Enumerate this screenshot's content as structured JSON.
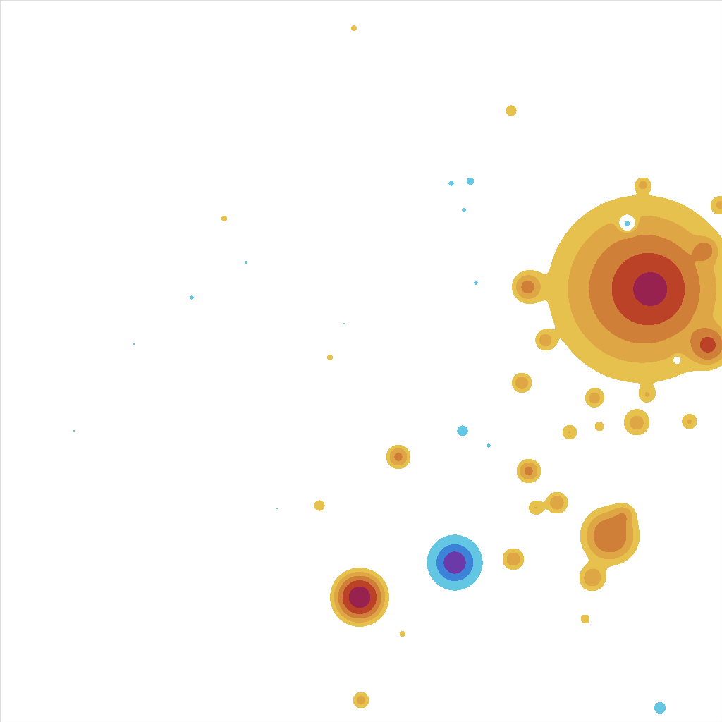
{
  "chart_data": {
    "type": "contour",
    "xlim": [
      0,
      1024
    ],
    "ylim": [
      1024,
      0
    ],
    "tick_labels": false,
    "grid": false,
    "levels": [
      -1000,
      -8,
      -4,
      -1,
      1,
      2,
      3.5,
      6,
      10,
      1000
    ],
    "colors": [
      "#6b3aa8",
      "#3b82d8",
      "#63c6e3",
      "#ffffff",
      "#e6c14e",
      "#dfa645",
      "#cf7f38",
      "#bb4127",
      "#97214f"
    ],
    "sources": [
      {
        "x": 910,
        "y": 410,
        "amplitude": 6,
        "size": 70
      },
      {
        "x": 925,
        "y": 410,
        "amplitude": 6,
        "size": 30
      },
      {
        "x": 1005,
        "y": 490,
        "amplitude": 6,
        "size": 15
      },
      {
        "x": 1000,
        "y": 355,
        "amplitude": 3,
        "size": 10
      },
      {
        "x": 645,
        "y": 798,
        "amplitude": -12,
        "size": 18
      },
      {
        "x": 510,
        "y": 847,
        "amplitude": 14,
        "size": 18
      },
      {
        "x": 565,
        "y": 648,
        "amplitude": 4,
        "size": 10
      },
      {
        "x": 750,
        "y": 668,
        "amplitude": 4,
        "size": 10
      },
      {
        "x": 748,
        "y": 407,
        "amplitude": 4,
        "size": 12
      },
      {
        "x": 865,
        "y": 760,
        "amplitude": 6,
        "size": 22
      },
      {
        "x": 840,
        "y": 820,
        "amplitude": 3,
        "size": 12
      },
      {
        "x": 885,
        "y": 730,
        "amplitude": 2,
        "size": 10
      },
      {
        "x": 790,
        "y": 713,
        "amplitude": 3,
        "size": 10
      },
      {
        "x": 760,
        "y": 720,
        "amplitude": 2,
        "size": 8
      },
      {
        "x": 728,
        "y": 793,
        "amplitude": 3,
        "size": 10
      },
      {
        "x": 740,
        "y": 543,
        "amplitude": 3,
        "size": 9
      },
      {
        "x": 773,
        "y": 483,
        "amplitude": 2.5,
        "size": 8
      },
      {
        "x": 843,
        "y": 565,
        "amplitude": 2.5,
        "size": 8
      },
      {
        "x": 850,
        "y": 605,
        "amplitude": 1.5,
        "size": 6
      },
      {
        "x": 903,
        "y": 600,
        "amplitude": 2.5,
        "size": 12
      },
      {
        "x": 918,
        "y": 560,
        "amplitude": 1.5,
        "size": 7
      },
      {
        "x": 808,
        "y": 613,
        "amplitude": 2,
        "size": 8
      },
      {
        "x": 978,
        "y": 598,
        "amplitude": 2,
        "size": 8
      },
      {
        "x": 453,
        "y": 717,
        "amplitude": 2,
        "size": 6
      },
      {
        "x": 512,
        "y": 993,
        "amplitude": 2.5,
        "size": 8
      },
      {
        "x": 890,
        "y": 318,
        "amplitude": -4,
        "size": 8
      },
      {
        "x": 656,
        "y": 611,
        "amplitude": -2.5,
        "size": 6
      },
      {
        "x": 936,
        "y": 1004,
        "amplitude": -3,
        "size": 6
      },
      {
        "x": 667,
        "y": 257,
        "amplitude": -2,
        "size": 5
      },
      {
        "x": 640,
        "y": 260,
        "amplitude": -1.8,
        "size": 4
      },
      {
        "x": 658,
        "y": 298,
        "amplitude": -1.5,
        "size": 4
      },
      {
        "x": 675,
        "y": 401,
        "amplitude": -1.5,
        "size": 4
      },
      {
        "x": 693,
        "y": 632,
        "amplitude": -1.5,
        "size": 4
      },
      {
        "x": 960,
        "y": 510,
        "amplitude": -2,
        "size": 4
      },
      {
        "x": 725,
        "y": 157,
        "amplitude": 2,
        "size": 6
      },
      {
        "x": 502,
        "y": 40,
        "amplitude": 1.5,
        "size": 4
      },
      {
        "x": 318,
        "y": 310,
        "amplitude": 1.5,
        "size": 4
      },
      {
        "x": 468,
        "y": 507,
        "amplitude": 1.5,
        "size": 4
      },
      {
        "x": 830,
        "y": 878,
        "amplitude": 2,
        "size": 5
      },
      {
        "x": 571,
        "y": 899,
        "amplitude": 1.5,
        "size": 4
      },
      {
        "x": 912,
        "y": 262,
        "amplitude": 2,
        "size": 6
      },
      {
        "x": 1022,
        "y": 290,
        "amplitude": 2,
        "size": 8
      },
      {
        "x": 272,
        "y": 422,
        "amplitude": -1.5,
        "size": 4
      },
      {
        "x": 349,
        "y": 372,
        "amplitude": -1.5,
        "size": 3
      },
      {
        "x": 105,
        "y": 611,
        "amplitude": -1.3,
        "size": 3
      },
      {
        "x": 393,
        "y": 721,
        "amplitude": -1.3,
        "size": 3
      },
      {
        "x": 190,
        "y": 488,
        "amplitude": -1.2,
        "size": 3
      },
      {
        "x": 488,
        "y": 459,
        "amplitude": -1.2,
        "size": 3
      }
    ]
  }
}
